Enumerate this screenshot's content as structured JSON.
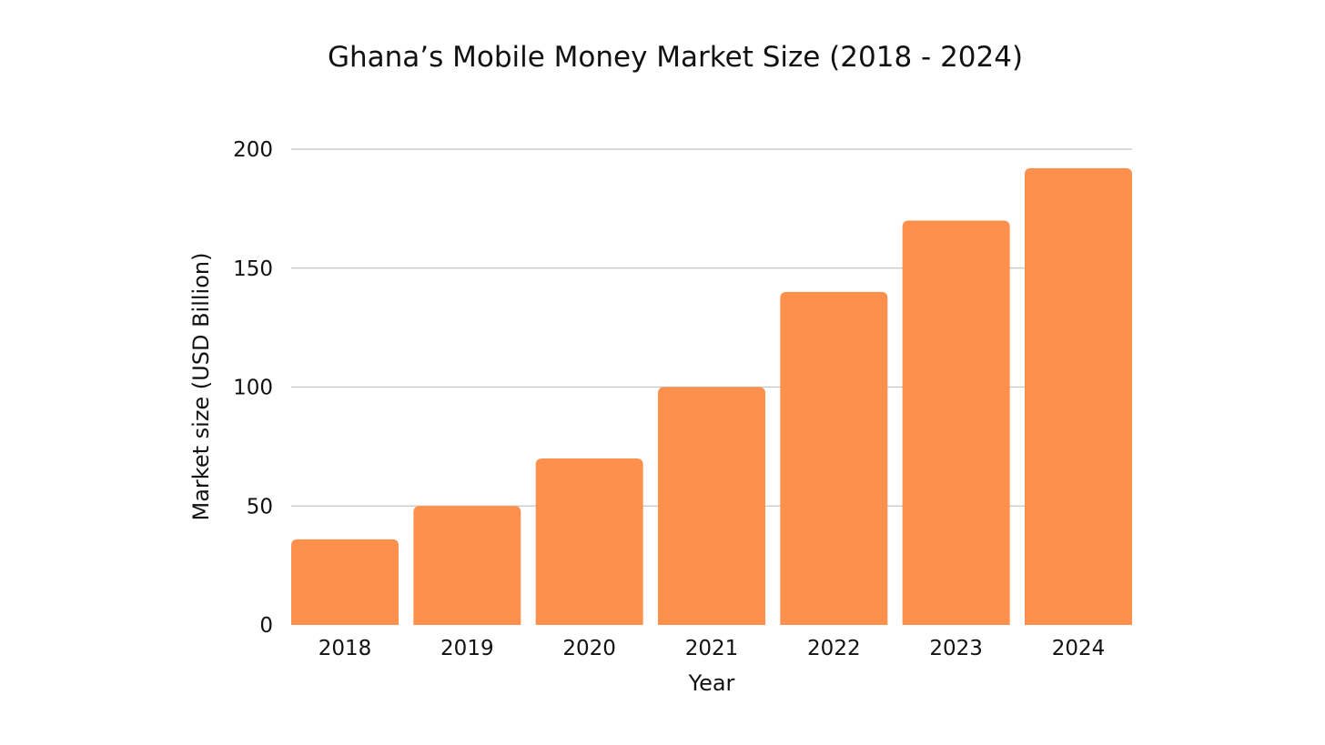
{
  "chart_data": {
    "type": "bar",
    "title": "Ghana’s Mobile Money Market Size (2018 - 2024)",
    "xlabel": "Year",
    "ylabel": "Market size (USD Billion)",
    "categories": [
      "2018",
      "2019",
      "2020",
      "2021",
      "2022",
      "2023",
      "2024"
    ],
    "values": [
      36,
      50,
      70,
      100,
      140,
      170,
      192
    ],
    "ylim": [
      0,
      200
    ],
    "yticks": [
      0,
      50,
      100,
      150,
      200
    ],
    "grid": true,
    "legend": "none",
    "bar_color": "#fd904d",
    "grid_color": "#c4c4c4"
  }
}
